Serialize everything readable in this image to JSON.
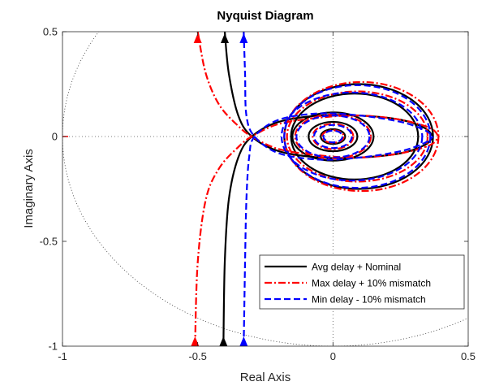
{
  "chart_data": {
    "type": "line",
    "title": "Nyquist Diagram",
    "xlabel": "Real Axis",
    "ylabel": "Imaginary Axis",
    "xlim": [
      -1,
      0.5
    ],
    "ylim": [
      -1,
      0.5
    ],
    "xticks": [
      "-1",
      "-0.5",
      "0",
      "0.5"
    ],
    "yticks": [
      "0.5",
      "0",
      "-0.5",
      "-1"
    ],
    "xtick_values": [
      -1,
      -0.5,
      0,
      0.5
    ],
    "ytick_values": [
      0.5,
      0,
      -0.5,
      -1
    ],
    "grid": "dotted zero lines and unit circle",
    "critical_point": [
      -1,
      0
    ],
    "legend_position": "bottom-right",
    "series": [
      {
        "name": "Avg delay + Nominal",
        "color": "#000000",
        "dash": "solid",
        "branch_lower": [
          [
            -0.405,
            -1.0
          ],
          [
            -0.4,
            -0.6
          ],
          [
            -0.385,
            -0.3
          ],
          [
            -0.35,
            -0.1
          ],
          [
            -0.3,
            0.0
          ],
          [
            -0.2,
            0.07
          ],
          [
            -0.05,
            0.1
          ],
          [
            0.1,
            0.1
          ],
          [
            0.25,
            0.08
          ],
          [
            0.34,
            0.04
          ],
          [
            0.37,
            0.0
          ]
        ],
        "branch_upper": [
          [
            -0.4,
            0.5
          ],
          [
            -0.385,
            0.3
          ],
          [
            -0.35,
            0.1
          ],
          [
            -0.3,
            0.0
          ],
          [
            -0.2,
            -0.07
          ],
          [
            -0.05,
            -0.1
          ],
          [
            0.1,
            -0.1
          ],
          [
            0.25,
            -0.08
          ],
          [
            0.34,
            -0.04
          ],
          [
            0.37,
            0.0
          ]
        ],
        "loops": [
          {
            "cx": 0.095,
            "cy": 0.0,
            "rx": 0.275,
            "ry": 0.25
          },
          {
            "cx": 0.08,
            "cy": 0.0,
            "rx": 0.235,
            "ry": 0.205
          },
          {
            "cx": 0.0,
            "cy": 0.0,
            "rx": 0.15,
            "ry": 0.115
          },
          {
            "cx": 0.0,
            "cy": 0.0,
            "rx": 0.09,
            "ry": 0.07
          },
          {
            "cx": 0.0,
            "cy": 0.0,
            "rx": 0.045,
            "ry": 0.035
          }
        ]
      },
      {
        "name": "Max delay + 10% mismatch",
        "color": "#ff0000",
        "dash": "dashdot",
        "branch_lower": [
          [
            -0.51,
            -1.0
          ],
          [
            -0.5,
            -0.6
          ],
          [
            -0.47,
            -0.3
          ],
          [
            -0.42,
            -0.15
          ],
          [
            -0.35,
            -0.05
          ],
          [
            -0.3,
            0.0
          ],
          [
            -0.2,
            0.06
          ],
          [
            -0.05,
            0.09
          ],
          [
            0.1,
            0.1
          ],
          [
            0.25,
            0.08
          ],
          [
            0.36,
            0.04
          ],
          [
            0.39,
            0.0
          ]
        ],
        "branch_upper": [
          [
            -0.5,
            0.5
          ],
          [
            -0.47,
            0.3
          ],
          [
            -0.42,
            0.15
          ],
          [
            -0.35,
            0.05
          ],
          [
            -0.3,
            0.0
          ],
          [
            -0.2,
            -0.06
          ],
          [
            -0.05,
            -0.09
          ],
          [
            0.1,
            -0.1
          ],
          [
            0.25,
            -0.08
          ],
          [
            0.36,
            -0.04
          ],
          [
            0.39,
            0.0
          ]
        ],
        "loops": [
          {
            "cx": 0.105,
            "cy": 0.0,
            "rx": 0.285,
            "ry": 0.26
          },
          {
            "cx": 0.09,
            "cy": 0.0,
            "rx": 0.26,
            "ry": 0.215
          },
          {
            "cx": 0.0,
            "cy": 0.0,
            "rx": 0.14,
            "ry": 0.105
          },
          {
            "cx": 0.0,
            "cy": 0.0,
            "rx": 0.075,
            "ry": 0.06
          },
          {
            "cx": 0.0,
            "cy": 0.0,
            "rx": 0.04,
            "ry": 0.03
          }
        ]
      },
      {
        "name": "Min delay - 10% mismatch",
        "color": "#0000ff",
        "dash": "dashed",
        "branch_lower": [
          [
            -0.33,
            -1.0
          ],
          [
            -0.325,
            -0.6
          ],
          [
            -0.32,
            -0.3
          ],
          [
            -0.31,
            -0.1
          ],
          [
            -0.29,
            0.0
          ],
          [
            -0.2,
            0.08
          ],
          [
            -0.05,
            0.11
          ],
          [
            0.1,
            0.1
          ],
          [
            0.25,
            0.07
          ],
          [
            0.34,
            0.03
          ],
          [
            0.37,
            0.0
          ]
        ],
        "branch_upper": [
          [
            -0.33,
            0.5
          ],
          [
            -0.325,
            0.3
          ],
          [
            -0.32,
            0.1
          ],
          [
            -0.29,
            0.0
          ],
          [
            -0.2,
            -0.08
          ],
          [
            -0.05,
            -0.11
          ],
          [
            0.1,
            -0.1
          ],
          [
            0.25,
            -0.07
          ],
          [
            0.34,
            -0.03
          ],
          [
            0.37,
            0.0
          ]
        ],
        "loops": [
          {
            "cx": 0.09,
            "cy": 0.0,
            "rx": 0.27,
            "ry": 0.245
          },
          {
            "cx": 0.07,
            "cy": 0.0,
            "rx": 0.26,
            "ry": 0.21
          },
          {
            "cx": 0.0,
            "cy": 0.0,
            "rx": 0.135,
            "ry": 0.1
          },
          {
            "cx": 0.0,
            "cy": 0.0,
            "rx": 0.07,
            "ry": 0.055
          },
          {
            "cx": 0.0,
            "cy": 0.0,
            "rx": 0.035,
            "ry": 0.028
          }
        ]
      }
    ]
  }
}
